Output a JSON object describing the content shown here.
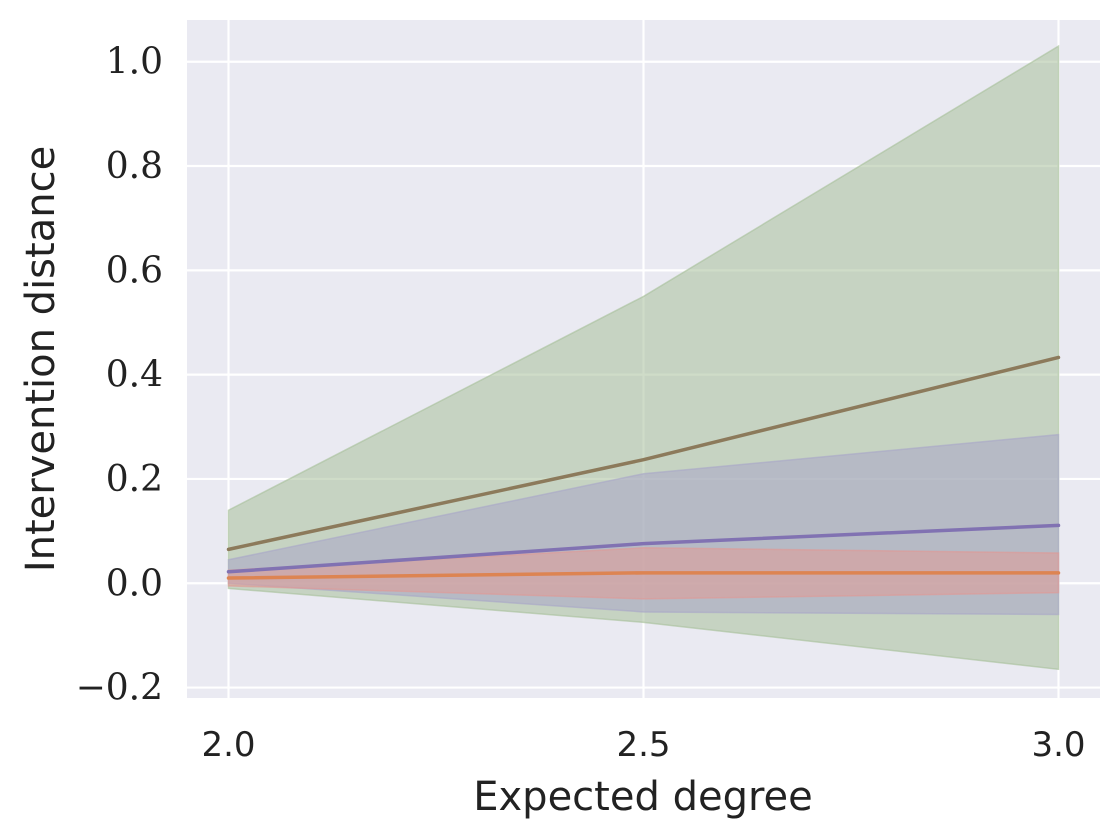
{
  "chart_data": {
    "type": "line",
    "title": "",
    "xlabel": "Expected degree",
    "ylabel": "Intervention distance",
    "x": [
      2.0,
      2.5,
      3.0
    ],
    "xticks": [
      "2.0",
      "2.5",
      "3.0"
    ],
    "yticks": [
      "−0.2",
      "0.0",
      "0.2",
      "0.4",
      "0.6",
      "0.8",
      "1.0"
    ],
    "xlim": [
      1.95,
      3.05
    ],
    "ylim": [
      -0.22,
      1.08
    ],
    "grid": true,
    "legend": "none",
    "colors": {
      "background": "#eaeaf2",
      "grid": "#ffffff"
    },
    "series": [
      {
        "values": [
          0.065,
          0.237,
          0.433
        ],
        "lower": [
          -0.01,
          -0.075,
          -0.165
        ],
        "upper": [
          0.14,
          0.55,
          1.03
        ],
        "line_color": "#8c7a5b",
        "band_color": "#a7bf9a"
      },
      {
        "values": [
          0.022,
          0.076,
          0.111
        ],
        "lower": [
          0.0,
          -0.055,
          -0.06
        ],
        "upper": [
          0.045,
          0.21,
          0.285
        ],
        "line_color": "#8172b2",
        "band_color": "#a9a6c8"
      },
      {
        "values": [
          0.01,
          0.02,
          0.02
        ],
        "lower": [
          -0.005,
          -0.03,
          -0.018
        ],
        "upper": [
          0.025,
          0.068,
          0.058
        ],
        "line_color": "#dd8452",
        "band_color": "#e09a96"
      }
    ]
  }
}
